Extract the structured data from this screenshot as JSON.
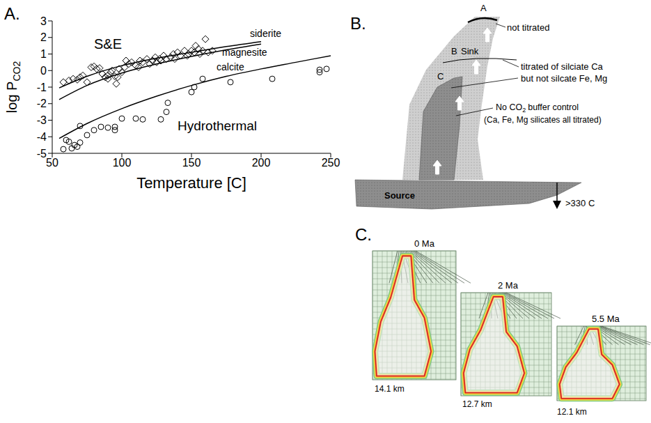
{
  "chart_data": {
    "type": "scatter",
    "panel_label": "A.",
    "x_label": "Temperature [C]",
    "y_label": "log P",
    "y_label_subscript": "CO2",
    "xlim": [
      50,
      250
    ],
    "xticks": [
      50,
      100,
      150,
      200,
      250
    ],
    "ylim": [
      -5,
      3
    ],
    "yticks": [
      -5,
      -4,
      -3,
      -2,
      -1,
      0,
      1,
      2,
      3
    ],
    "grid": false,
    "series": [
      {
        "name": "S&E",
        "type": "scatter",
        "marker": "diamond",
        "color": "#000000",
        "x": [
          58,
          62,
          65,
          68,
          70,
          72,
          75,
          78,
          80,
          82,
          84,
          86,
          88,
          90,
          90,
          92,
          93,
          95,
          96,
          97,
          98,
          100,
          102,
          103,
          105,
          107,
          110,
          112,
          113,
          115,
          118,
          120,
          122,
          124,
          125,
          127,
          128,
          130,
          132,
          135,
          137,
          138,
          140,
          142,
          145,
          147,
          148,
          150,
          152,
          153,
          155,
          156,
          158,
          160,
          162,
          165
        ],
        "values": [
          -0.7,
          -0.6,
          -0.5,
          -0.55,
          -0.4,
          -0.3,
          -0.7,
          0.2,
          0.25,
          0.1,
          0.15,
          -0.2,
          -0.4,
          -0.3,
          -0.5,
          -0.1,
          0,
          -0.35,
          -0.8,
          -0.4,
          0.1,
          -0.1,
          0.2,
          0.6,
          0.4,
          0.5,
          0.3,
          0.2,
          0.6,
          0.5,
          0.7,
          0.4,
          0.6,
          0.8,
          0.5,
          0.7,
          0.6,
          0.9,
          0.7,
          0.8,
          1.0,
          0.7,
          1.1,
          0.9,
          1.2,
          0.9,
          1.0,
          1.2,
          1.1,
          1.5,
          1.3,
          1.0,
          1.2,
          1.9,
          1.1,
          1.2
        ]
      },
      {
        "name": "Hydrothermal",
        "type": "scatter",
        "marker": "circle",
        "color": "#000000",
        "x": [
          58,
          60,
          62,
          64,
          66,
          68,
          70,
          70,
          75,
          80,
          85,
          90,
          95,
          95,
          100,
          110,
          115,
          128,
          132,
          133,
          150,
          152,
          158,
          178,
          208,
          242,
          242,
          247
        ],
        "values": [
          -4.75,
          -4.2,
          -4.3,
          -4.7,
          -4.5,
          -4.6,
          -4.35,
          -3.35,
          -3.9,
          -3.6,
          -3.4,
          -3.45,
          -3.6,
          -3.4,
          -2.9,
          -2.9,
          -2.95,
          -2.95,
          -2.5,
          -1.95,
          -1.3,
          -1.0,
          -0.5,
          -0.7,
          -0.5,
          -0.1,
          0.05,
          0.1
        ]
      },
      {
        "name": "siderite",
        "type": "line",
        "line_style": "solid",
        "color": "#000000",
        "x": [
          55,
          75,
          100,
          125,
          150,
          175,
          200
        ],
        "values": [
          -1.05,
          -0.35,
          0.3,
          0.75,
          1.1,
          1.45,
          1.75
        ]
      },
      {
        "name": "magnesite",
        "type": "line",
        "line_style": "solid",
        "color": "#000000",
        "x": [
          55,
          75,
          100,
          125,
          150,
          175,
          200
        ],
        "values": [
          -1.75,
          -0.9,
          -0.15,
          0.4,
          0.85,
          1.25,
          1.6
        ]
      },
      {
        "name": "calcite",
        "type": "line",
        "line_style": "solid",
        "color": "#000000",
        "x": [
          55,
          75,
          100,
          125,
          150,
          175,
          200,
          225,
          250
        ],
        "values": [
          -4.1,
          -3.2,
          -2.3,
          -1.55,
          -0.9,
          -0.35,
          0.1,
          0.5,
          0.9
        ]
      }
    ]
  },
  "diagram": {
    "panel_label": "B.",
    "top_letter": "A",
    "not_titrated": "not titrated",
    "sink_letter": "B",
    "sink": "Sink",
    "partial_line1": "titrated of silciate Ca",
    "partial_line2": "but not silcate Fe, Mg",
    "inner_letter": "C",
    "no_buffer": "No CO",
    "no_buffer_subscript": "2",
    "no_buffer_rest": "buffer control",
    "all_titrated": "(Ca, Fe, Mg silicates all titrated)",
    "source": "Source",
    "temperature": ">330 C"
  },
  "model": {
    "panel_label": "C.",
    "frames": [
      {
        "time": "0 Ma",
        "depth": "14.1 km"
      },
      {
        "time": "2 Ma",
        "depth": "12.7 km"
      },
      {
        "time": "5.5 Ma",
        "depth": "12.1 km"
      }
    ]
  }
}
